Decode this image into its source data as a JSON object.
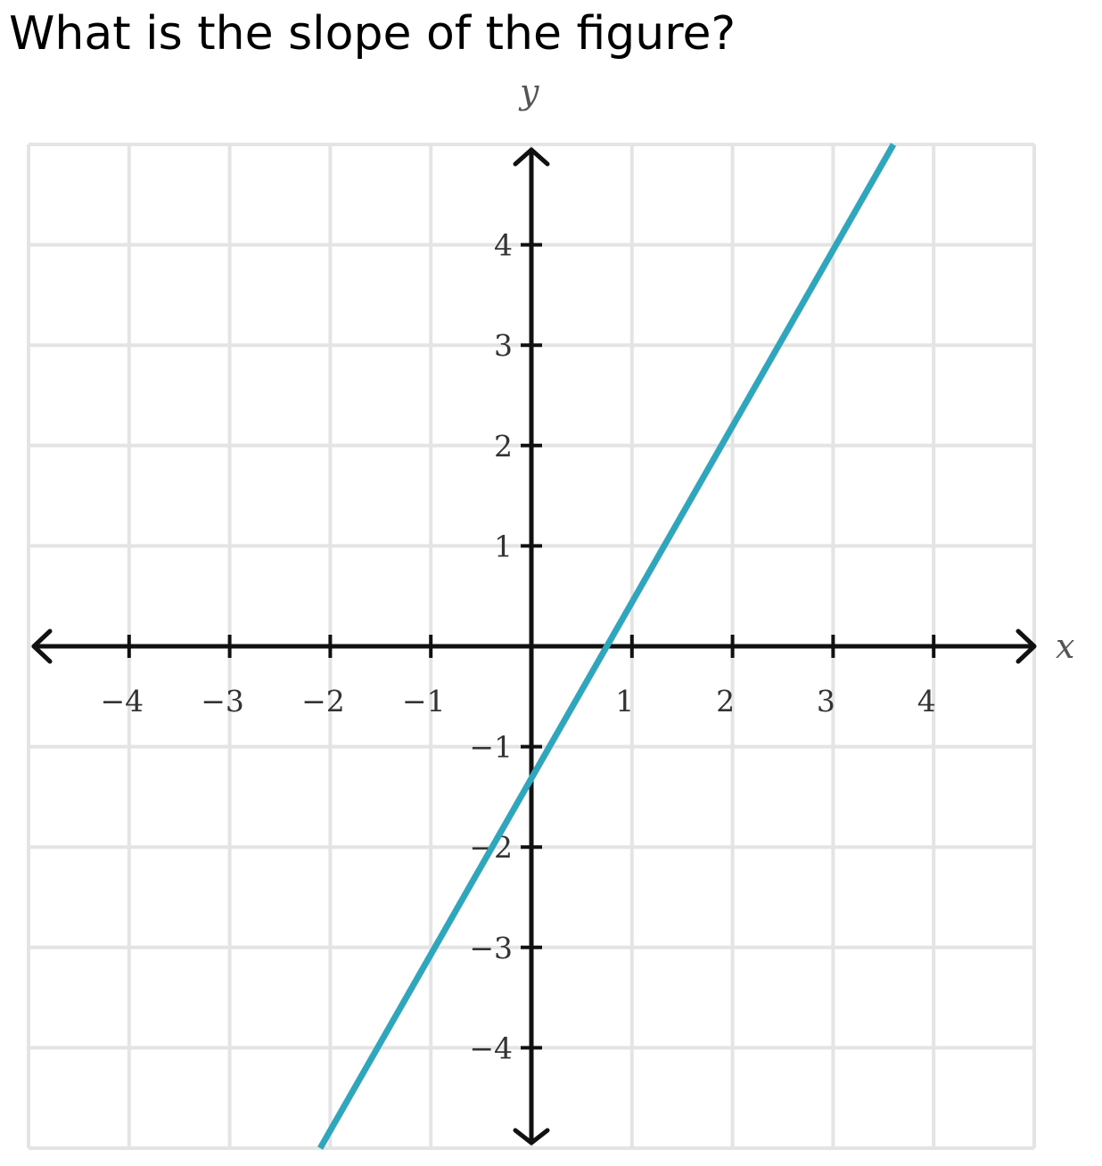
{
  "question": {
    "text": "What is the slope of the figure?"
  },
  "chart_data": {
    "type": "line",
    "title": "",
    "xlabel": "x",
    "ylabel": "y",
    "xlim": [
      -5,
      5
    ],
    "ylim": [
      -5,
      5
    ],
    "grid": true,
    "x_ticks": [
      -4,
      -3,
      -2,
      -1,
      1,
      2,
      3,
      4
    ],
    "y_ticks": [
      4,
      3,
      2,
      1,
      -1,
      -2,
      -3,
      -4
    ],
    "x_tick_labels": [
      "−4",
      "−3",
      "−2",
      "−1",
      "1",
      "2",
      "3",
      "4"
    ],
    "y_tick_labels": [
      "4",
      "3",
      "2",
      "1",
      "−1",
      "−2",
      "−3",
      "−4"
    ],
    "series": [
      {
        "points": [
          [
            -2.1,
            -5
          ],
          [
            3.6,
            5
          ]
        ],
        "color": "#30a6bd"
      }
    ],
    "colors": {
      "grid": "#e4e4e4",
      "axis": "#111111"
    }
  }
}
